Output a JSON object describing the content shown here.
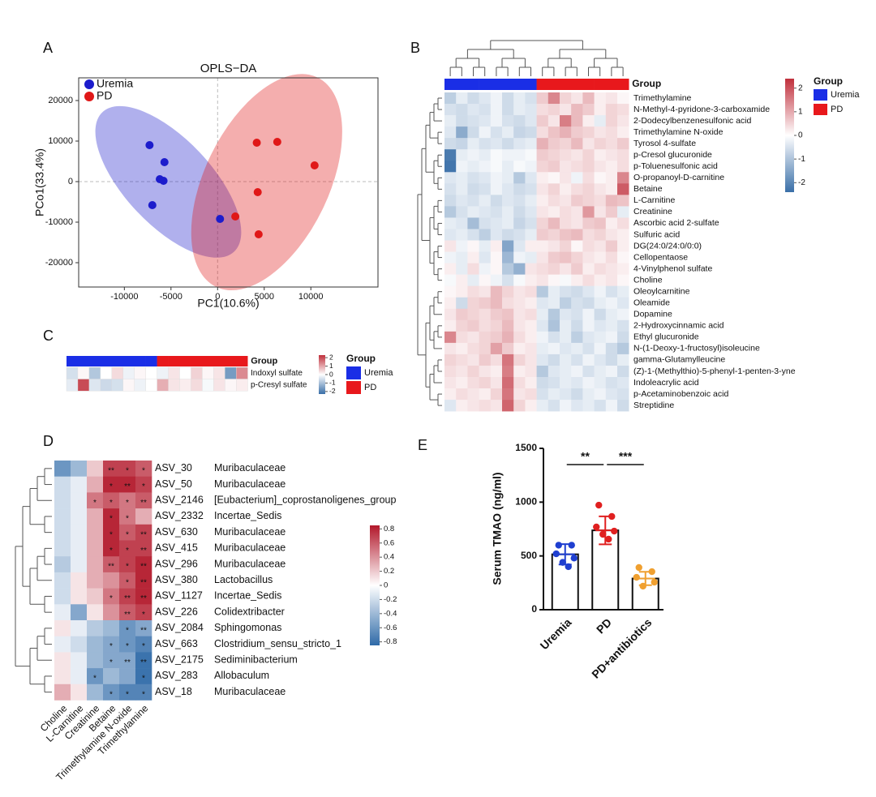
{
  "chart_data": [
    {
      "type": "scatter",
      "panel": "A",
      "title": "OPLS−DA",
      "x_label": "PC1(10.6%)",
      "y_label": "PCo1(33.4%)",
      "series": [
        {
          "name": "Uremia",
          "color": "#1c1ccc",
          "x": [
            -7300,
            -5700,
            -6200,
            -5800,
            -7000,
            260
          ],
          "y": [
            9000,
            4800,
            600,
            200,
            -5800,
            -9200
          ]
        },
        {
          "name": "PD",
          "color": "#e01818",
          "x": [
            4200,
            6400,
            10400,
            4300,
            1900,
            4400
          ],
          "y": [
            9600,
            9800,
            4000,
            -2600,
            -8600,
            -13000
          ]
        }
      ],
      "xlim": [
        -14900,
        17200
      ],
      "ylim": [
        -26000,
        25600
      ],
      "xticks": [
        -10000,
        -5000,
        0,
        5000,
        10000
      ],
      "yticks": [
        -20000,
        -10000,
        0,
        10000,
        20000
      ],
      "legend": "top-left"
    },
    {
      "type": "heatmap",
      "panel": "B",
      "group_bar_label": "Group",
      "group_legend": {
        "title": "Group",
        "items": [
          {
            "name": "Uremia",
            "color": "#1a2ee6"
          },
          {
            "name": "PD",
            "color": "#e8181c"
          }
        ]
      },
      "column_group": [
        0,
        0,
        0,
        0,
        0,
        0,
        0,
        0,
        1,
        1,
        1,
        1,
        1,
        1,
        1,
        1
      ],
      "rows": [
        "Trimethylamine",
        "N-Methyl-4-pyridone-3-carboxamide",
        "2-Dodecylbenzenesulfonic acid",
        "Trimethylamine N-oxide",
        "Tyrosol 4-sulfate",
        "p-Cresol glucuronide",
        "p-Toluenesulfonic acid",
        "O-propanoyl-D-carnitine",
        "Betaine",
        "L-Carnitine",
        "Creatinine",
        "Ascorbic acid 2-sulfate",
        "Sulfuric acid",
        "DG(24:0/24:0/0:0)",
        "Cellopentaose",
        "4-Vinylphenol sulfate",
        "Choline",
        "Oleoylcarnitine",
        "Oleamide",
        "Dopamine",
        "2-Hydroxycinnamic acid",
        "Ethyl glucuronide",
        "N-(1-Deoxy-1-fructosyl)isoleucine",
        "gamma-Glutamylleucine",
        "(Z)-1-(Methylthio)-5-phenyl-1-penten-3-yne",
        "Indoleacrylic acid",
        "p-Acetaminobenzoic acid",
        "Streptidine"
      ],
      "values": [
        [
          -0.8,
          -0.3,
          -0.6,
          -0.4,
          -0.2,
          -0.6,
          -0.3,
          -0.5,
          0.6,
          1.4,
          0.5,
          0.3,
          0.8,
          0.2,
          0.3,
          0.1
        ],
        [
          -0.5,
          -0.6,
          -0.4,
          -0.5,
          -0.2,
          -0.6,
          -0.3,
          -0.4,
          0.4,
          0.5,
          0.3,
          0.8,
          0.6,
          0.2,
          0.5,
          0.4
        ],
        [
          -0.3,
          -0.6,
          -0.5,
          -0.4,
          -0.2,
          -0.5,
          -0.6,
          -0.4,
          0.6,
          0.3,
          1.5,
          0.8,
          0.2,
          -0.3,
          0.5,
          0.3
        ],
        [
          -0.4,
          -1.4,
          -0.6,
          -0.2,
          -0.5,
          -0.3,
          -0.7,
          -0.6,
          0.4,
          0.7,
          0.9,
          0.6,
          0.5,
          0.3,
          0.4,
          0.2
        ],
        [
          -0.6,
          -0.7,
          -0.3,
          -0.5,
          -0.4,
          -0.6,
          -0.4,
          -0.3,
          0.9,
          0.6,
          0.5,
          0.8,
          0.3,
          0.5,
          0.4,
          0.6
        ],
        [
          -2.2,
          -0.3,
          -0.2,
          -0.3,
          -0.1,
          -0.2,
          -0.2,
          -0.1,
          0.6,
          0.5,
          0.4,
          0.3,
          0.5,
          0.2,
          0.3,
          0.4
        ],
        [
          -2.3,
          -0.2,
          -0.3,
          -0.2,
          -0.1,
          -0.3,
          -0.1,
          -0.2,
          0.5,
          0.6,
          0.3,
          0.4,
          0.5,
          0.3,
          0.2,
          0.4
        ],
        [
          -0.4,
          -0.3,
          -0.5,
          -0.4,
          -0.2,
          -0.3,
          -0.9,
          -0.4,
          0.2,
          0.1,
          0.3,
          -0.2,
          0.4,
          0.1,
          0.2,
          1.4
        ],
        [
          -0.5,
          -0.3,
          -0.6,
          -0.5,
          -0.2,
          -0.4,
          -0.6,
          -0.5,
          0.3,
          0.5,
          0.2,
          0.4,
          0.5,
          0.3,
          0.2,
          1.9
        ],
        [
          -0.6,
          -0.4,
          -0.5,
          -0.3,
          -0.6,
          -0.4,
          -0.5,
          -0.3,
          0.2,
          0.4,
          0.3,
          0.6,
          0.5,
          0.4,
          0.8,
          0.7
        ],
        [
          -0.9,
          -0.5,
          -0.3,
          -0.4,
          -0.5,
          -0.3,
          -0.6,
          -0.4,
          0.3,
          0.2,
          0.4,
          0.3,
          1.2,
          0.3,
          0.6,
          -0.3
        ],
        [
          -0.3,
          -0.4,
          -1.1,
          -0.5,
          -0.4,
          -0.3,
          -0.7,
          -0.5,
          0.5,
          0.8,
          0.4,
          0.3,
          0.6,
          0.7,
          0.2,
          0.4
        ],
        [
          -0.4,
          -0.3,
          -0.5,
          -0.8,
          -0.4,
          -0.6,
          -0.5,
          -0.3,
          0.6,
          0.5,
          0.7,
          0.8,
          0.4,
          0.5,
          0.3,
          0.2
        ],
        [
          0.3,
          -0.2,
          0.1,
          -0.3,
          0.2,
          -1.5,
          -0.4,
          0.2,
          0.2,
          0.3,
          0.5,
          0.1,
          0.4,
          0.3,
          0.6,
          0.2
        ],
        [
          -0.2,
          -0.3,
          0.2,
          -0.4,
          0.1,
          -1.2,
          -0.2,
          -0.3,
          0.3,
          0.6,
          0.7,
          0.5,
          0.3,
          0.2,
          0.4,
          0.1
        ],
        [
          0.2,
          -0.3,
          0.4,
          -0.2,
          0.1,
          -0.9,
          -1.3,
          0.3,
          0.4,
          0.5,
          0.3,
          0.6,
          0.2,
          0.4,
          0.3,
          0.2
        ],
        [
          -0.1,
          0.2,
          -0.3,
          0.1,
          -0.2,
          -0.5,
          -0.1,
          0.2,
          0.3,
          0.1,
          -0.1,
          0.2,
          0.4,
          0.2,
          0.3,
          0.1
        ],
        [
          0.1,
          0.2,
          0.4,
          0.3,
          0.8,
          0.5,
          0.3,
          0.4,
          -0.9,
          -0.3,
          -0.5,
          -0.6,
          -0.4,
          -0.2,
          -0.5,
          -0.3
        ],
        [
          0.2,
          -0.6,
          0.5,
          0.6,
          0.8,
          0.4,
          0.3,
          0.2,
          -0.4,
          -0.3,
          -0.8,
          -0.5,
          -0.6,
          -0.3,
          -0.2,
          -0.4
        ],
        [
          0.3,
          0.6,
          0.5,
          0.4,
          0.6,
          0.7,
          0.3,
          0.4,
          -0.3,
          -0.9,
          -0.4,
          -0.5,
          -0.2,
          -0.6,
          -0.3,
          -0.2
        ],
        [
          0.2,
          0.5,
          0.6,
          0.4,
          0.5,
          0.8,
          0.3,
          0.2,
          -0.4,
          -1.0,
          -0.3,
          -0.6,
          -0.2,
          -0.4,
          -0.3,
          -0.5
        ],
        [
          1.4,
          0.4,
          0.3,
          0.5,
          0.6,
          0.9,
          0.4,
          0.2,
          -0.2,
          -0.5,
          -0.3,
          -0.8,
          -0.4,
          -0.3,
          -0.2,
          -0.6
        ],
        [
          0.3,
          0.2,
          0.4,
          0.5,
          1.1,
          0.6,
          0.2,
          0.3,
          -0.3,
          -0.2,
          -0.4,
          -0.3,
          -0.5,
          -0.2,
          -0.6,
          -0.9
        ],
        [
          0.5,
          0.4,
          0.3,
          0.6,
          0.4,
          1.6,
          0.5,
          0.3,
          -0.4,
          -0.6,
          -0.3,
          -0.5,
          -0.2,
          -0.4,
          -0.6,
          -0.3
        ],
        [
          0.4,
          0.3,
          0.5,
          0.3,
          0.2,
          1.5,
          0.2,
          0.3,
          -0.9,
          -0.4,
          -0.3,
          -0.2,
          -0.5,
          -0.3,
          -0.2,
          -0.6
        ],
        [
          0.3,
          0.2,
          0.4,
          0.5,
          0.3,
          1.7,
          0.4,
          0.2,
          -0.6,
          -0.5,
          -0.3,
          -0.4,
          -0.2,
          -0.3,
          -0.5,
          -0.4
        ],
        [
          0.2,
          0.4,
          0.3,
          0.2,
          0.5,
          1.6,
          0.3,
          0.4,
          -0.5,
          -0.3,
          -0.4,
          -0.6,
          -0.3,
          -0.2,
          -0.4,
          -0.5
        ],
        [
          -0.4,
          0.2,
          0.3,
          0.4,
          0.3,
          1.8,
          0.5,
          0.2,
          -0.3,
          -0.5,
          -0.2,
          -0.4,
          -0.3,
          -0.5,
          -0.2,
          -0.6
        ]
      ],
      "colorbar": {
        "lim": [
          -2.4,
          2.4
        ],
        "ticks": [
          2,
          1,
          0,
          -1,
          -2
        ],
        "colors": [
          "#3a6fa8",
          "#ffffff",
          "#c0303c"
        ]
      }
    },
    {
      "type": "heatmap",
      "panel": "C",
      "group_bar_label": "Group",
      "group_legend": {
        "title": "Group",
        "items": [
          {
            "name": "Uremia",
            "color": "#1a2ee6"
          },
          {
            "name": "PD",
            "color": "#e8181c"
          }
        ]
      },
      "column_group": [
        0,
        0,
        0,
        0,
        0,
        0,
        0,
        0,
        1,
        1,
        1,
        1,
        1,
        1,
        1,
        1
      ],
      "rows": [
        "Indoxyl sulfate",
        "p-Cresyl sulfate"
      ],
      "values": [
        [
          -0.5,
          0.1,
          -0.9,
          0.0,
          0.4,
          -0.2,
          0.1,
          0.0,
          -0.2,
          0.3,
          0.0,
          0.5,
          0.1,
          0.3,
          -1.6,
          1.3
        ],
        [
          -0.3,
          2.0,
          -0.4,
          -0.6,
          -0.5,
          0.1,
          -0.2,
          0.0,
          0.9,
          0.3,
          0.2,
          0.4,
          -0.1,
          0.3,
          0.1,
          0.2
        ]
      ],
      "colorbar": {
        "lim": [
          -2.3,
          2.3
        ],
        "ticks": [
          2,
          1,
          0,
          -1,
          -2
        ],
        "colors": [
          "#3a6fa8",
          "#ffffff",
          "#c0303c"
        ]
      }
    },
    {
      "type": "heatmap",
      "panel": "D",
      "rows": [
        "ASV_30",
        "ASV_50",
        "ASV_2146",
        "ASV_2332",
        "ASV_630",
        "ASV_415",
        "ASV_296",
        "ASV_380",
        "ASV_1127",
        "ASV_226",
        "ASV_2084",
        "ASV_663",
        "ASV_2175",
        "ASV_283",
        "ASV_18"
      ],
      "row_taxa": [
        "Muribaculaceae",
        "Muribaculaceae",
        "[Eubacterium]_coprostanoligenes_group",
        "Incertae_Sedis",
        "Muribaculaceae",
        "Muribaculaceae",
        "Muribaculaceae",
        "Lactobacillus",
        "Incertae_Sedis",
        "Colidextribacter",
        "Sphingomonas",
        "Clostridium_sensu_stricto_1",
        "Sediminibacterium",
        "Allobaculum",
        "Muribaculaceae"
      ],
      "columns": [
        "Choline",
        "L-Carnitine",
        "Creatinine",
        "Betaine",
        "Trimethylamine N-oxide",
        "Trimethylamine"
      ],
      "values": [
        [
          -0.6,
          -0.4,
          0.2,
          0.7,
          0.7,
          0.6
        ],
        [
          -0.2,
          -0.1,
          0.3,
          0.8,
          0.8,
          0.7
        ],
        [
          -0.2,
          -0.1,
          0.5,
          0.6,
          0.5,
          0.6
        ],
        [
          -0.2,
          -0.1,
          0.3,
          0.8,
          0.5,
          0.3
        ],
        [
          -0.2,
          -0.1,
          0.3,
          0.8,
          0.6,
          0.7
        ],
        [
          -0.2,
          -0.1,
          0.3,
          0.8,
          0.7,
          0.7
        ],
        [
          -0.3,
          -0.1,
          0.3,
          0.6,
          0.7,
          0.8
        ],
        [
          -0.2,
          0.1,
          0.3,
          0.4,
          0.6,
          0.8
        ],
        [
          -0.2,
          0.1,
          0.2,
          0.5,
          0.7,
          0.8
        ],
        [
          -0.1,
          -0.5,
          0.1,
          0.4,
          0.6,
          0.7
        ],
        [
          0.1,
          -0.1,
          -0.3,
          -0.4,
          -0.6,
          -0.5
        ],
        [
          -0.1,
          -0.2,
          -0.4,
          -0.5,
          -0.6,
          -0.7
        ],
        [
          0.1,
          -0.1,
          -0.4,
          -0.5,
          -0.5,
          -0.8
        ],
        [
          0.1,
          -0.1,
          -0.6,
          -0.4,
          -0.5,
          -0.8
        ],
        [
          0.3,
          0.1,
          -0.4,
          -0.6,
          -0.7,
          -0.7
        ]
      ],
      "stars": [
        [
          null,
          null,
          null,
          "**",
          "*",
          "*"
        ],
        [
          null,
          null,
          null,
          "*",
          "**",
          "*"
        ],
        [
          null,
          null,
          "*",
          "*",
          "*",
          "**"
        ],
        [
          null,
          null,
          null,
          "*",
          "*",
          null
        ],
        [
          null,
          null,
          null,
          "*",
          "*",
          "**"
        ],
        [
          null,
          null,
          null,
          "*",
          "*",
          "**"
        ],
        [
          null,
          null,
          null,
          "**",
          "*",
          "**"
        ],
        [
          null,
          null,
          null,
          null,
          "*",
          "**"
        ],
        [
          null,
          null,
          null,
          "*",
          "**",
          "**"
        ],
        [
          null,
          null,
          null,
          null,
          "**",
          "*"
        ],
        [
          null,
          null,
          null,
          null,
          "*",
          "**"
        ],
        [
          null,
          null,
          null,
          "*",
          "*",
          "*"
        ],
        [
          null,
          null,
          null,
          "*",
          "**",
          "**"
        ],
        [
          null,
          null,
          "*",
          null,
          null,
          "*"
        ],
        [
          null,
          null,
          null,
          "*",
          "*",
          "*"
        ]
      ],
      "colorbar": {
        "lim": [
          -0.85,
          0.85
        ],
        "ticks": [
          0.8,
          0.6,
          0.4,
          0.2,
          0,
          -0.2,
          -0.4,
          -0.6,
          -0.8
        ],
        "colors": [
          "#2f6aa8",
          "#ffffff",
          "#b2182b"
        ]
      }
    },
    {
      "type": "bar",
      "panel": "E",
      "y_label": "Serum TMAO (ng/ml)",
      "categories": [
        "Uremia",
        "PD",
        "PD+antibiotics"
      ],
      "values": [
        515,
        738,
        290
      ],
      "errors": [
        95,
        130,
        62
      ],
      "points": [
        [
          600,
          600,
          520,
          480,
          440,
          400
        ],
        [
          972,
          867,
          769,
          731,
          701,
          656
        ],
        [
          392,
          354,
          301,
          256,
          219
        ]
      ],
      "colors": [
        "#1f3fd0",
        "#e02020",
        "#f0a030"
      ],
      "comparisons": [
        {
          "label": "**",
          "groups": [
            "Uremia",
            "PD"
          ]
        },
        {
          "label": "***",
          "groups": [
            "PD",
            "PD+antibiotics"
          ]
        }
      ],
      "ylim": [
        0,
        1500
      ],
      "yticks": [
        0,
        500,
        1000,
        1500
      ]
    }
  ]
}
